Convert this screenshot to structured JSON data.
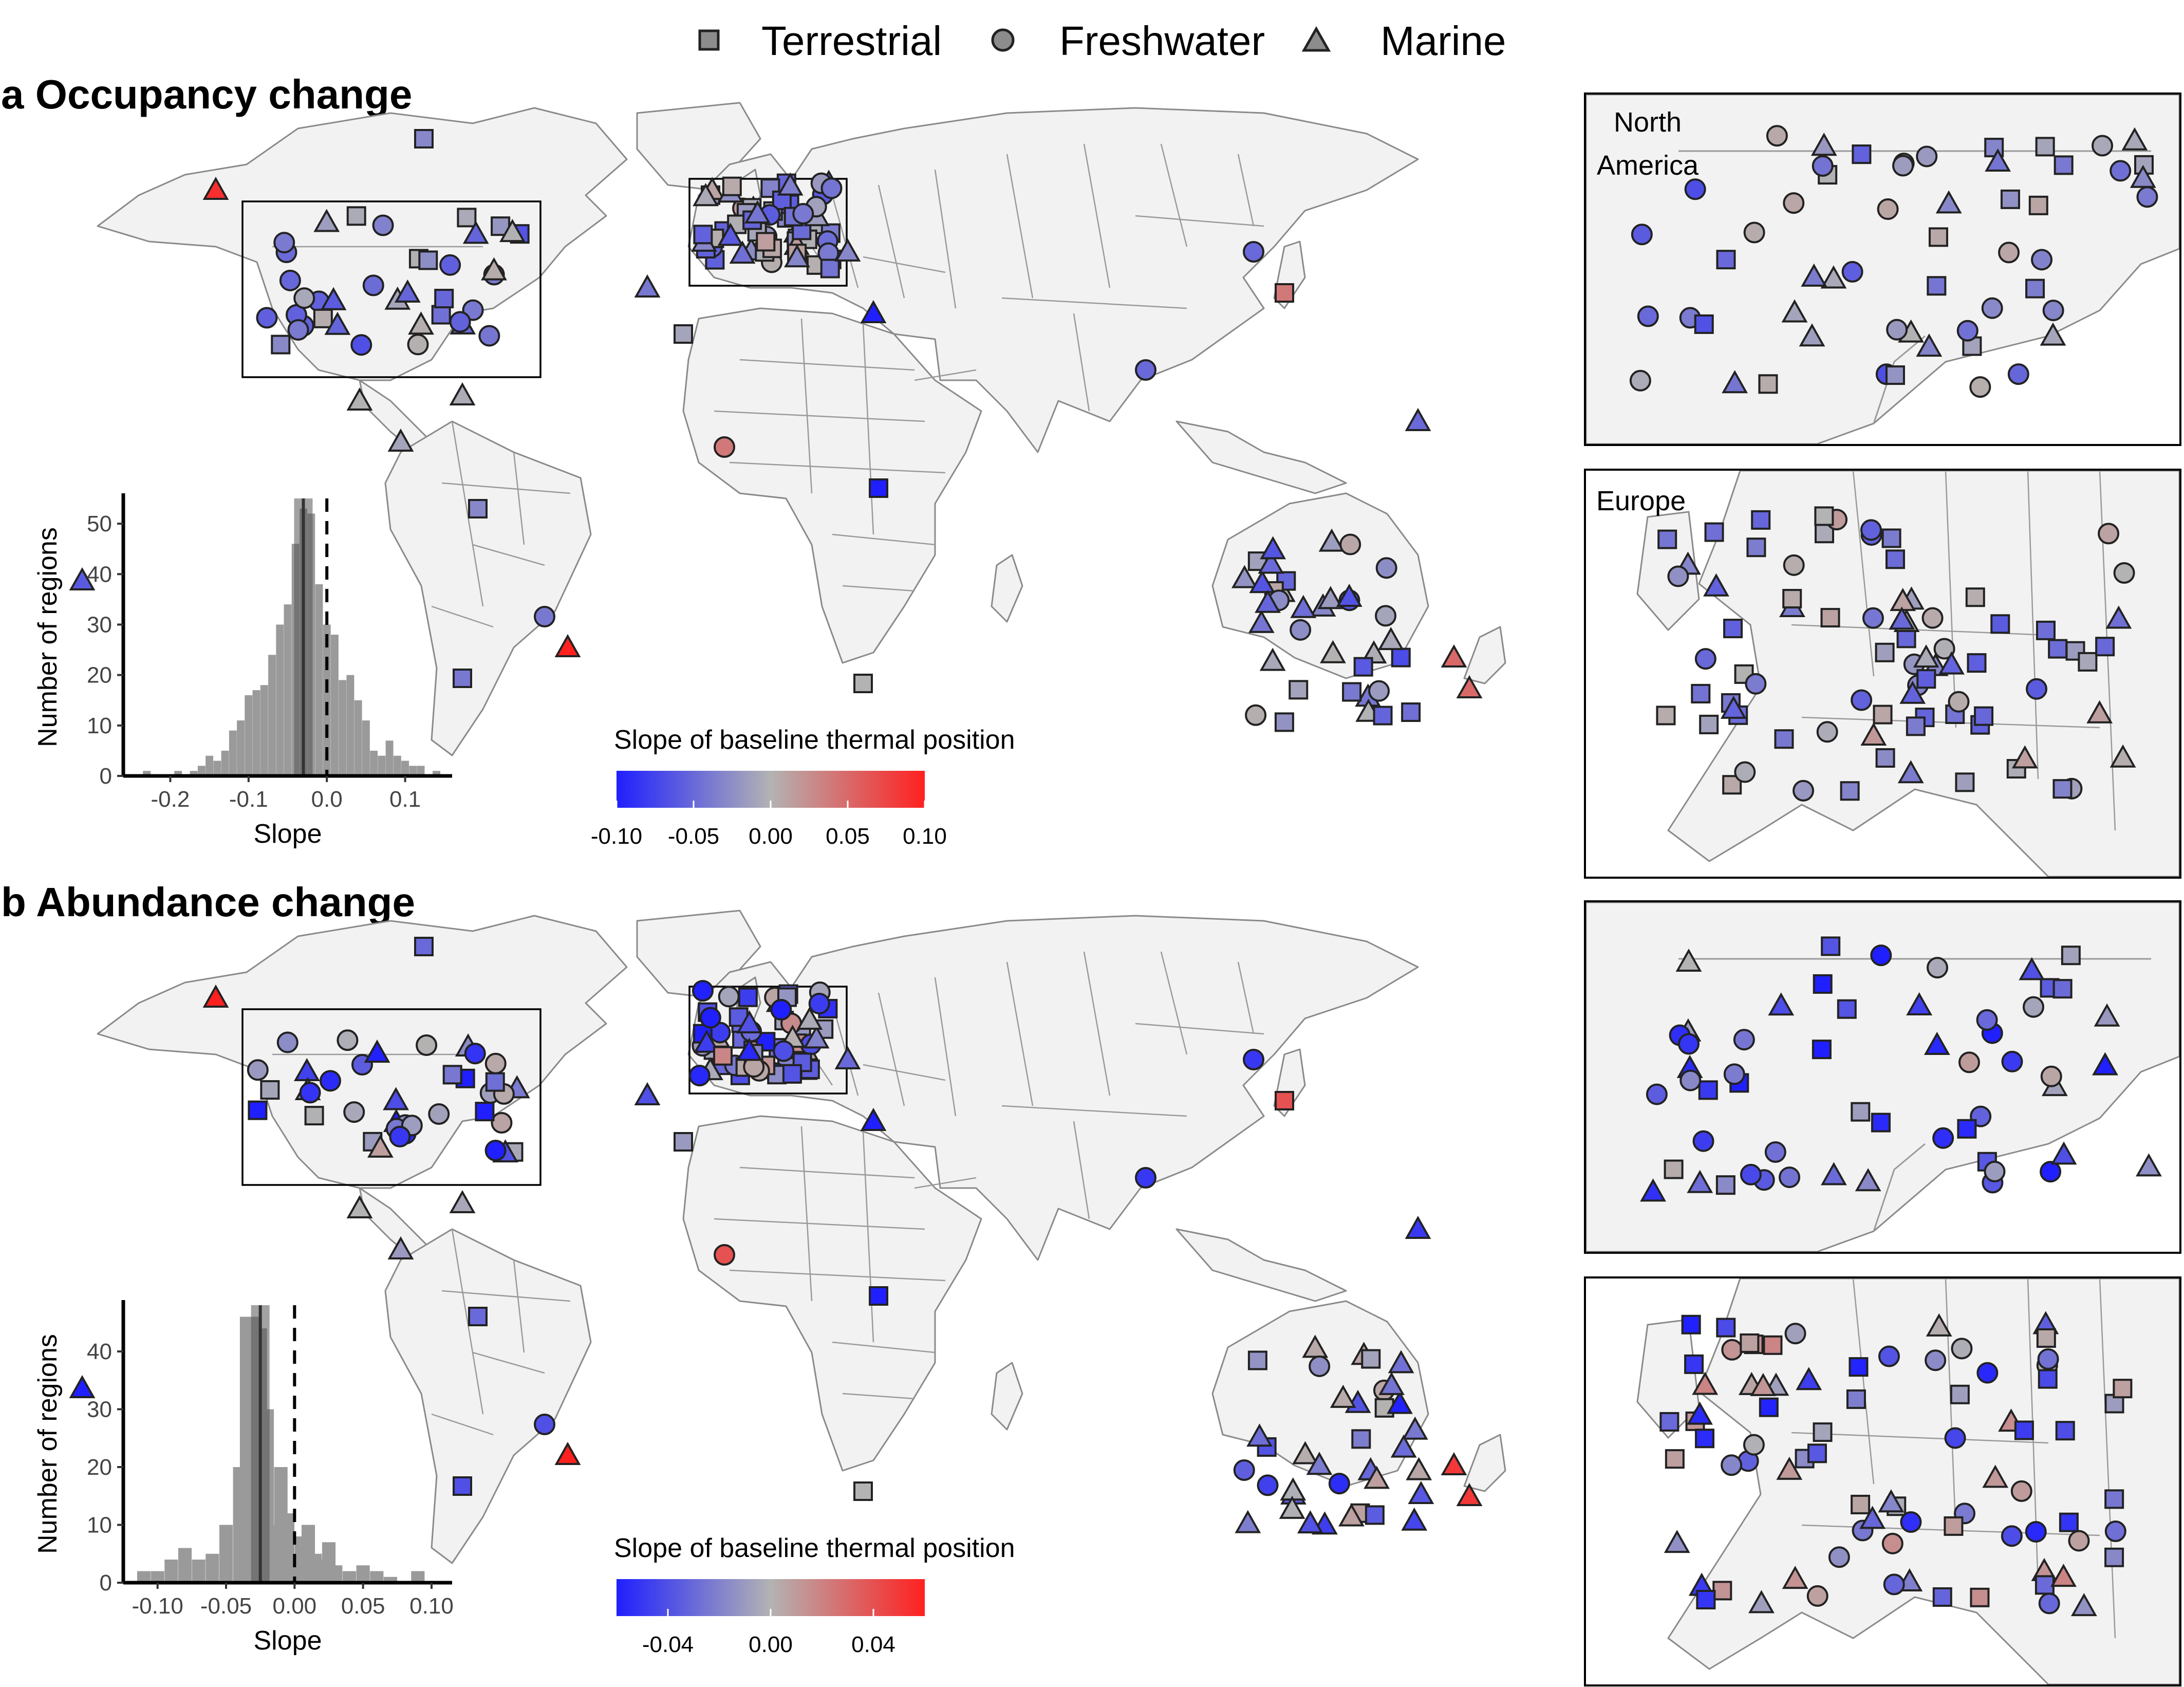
{
  "legend": {
    "items": [
      {
        "shape": "square",
        "label": "Terrestrial"
      },
      {
        "shape": "circle",
        "label": "Freshwater"
      },
      {
        "shape": "triangle",
        "label": "Marine"
      }
    ]
  },
  "panels": [
    {
      "id": "a",
      "title": "a Occupancy change",
      "colorbar": {
        "title": "Slope of baseline thermal position",
        "ticks": [
          "-0.10",
          "-0.05",
          "0.00",
          "0.05",
          "0.10"
        ],
        "range": [
          -0.1,
          0.1
        ],
        "colors": {
          "low": "#1f1fff",
          "mid": "#b3b3b3",
          "high": "#ff2020"
        }
      },
      "inset_labels": {
        "north_america": "North\nAmerica",
        "europe": "Europe"
      },
      "histogram": {
        "xlabel": "Slope",
        "ylabel": "Number of regions",
        "xticks": [
          "-0.2",
          "-0.1",
          "0.0",
          "0.1"
        ],
        "yticks": [
          "0",
          "10",
          "20",
          "30",
          "40",
          "50"
        ],
        "xlim": [
          -0.26,
          0.16
        ],
        "ylim": [
          0,
          55
        ],
        "mean_line": -0.03,
        "zero_line": 0,
        "bins": [
          {
            "x": -0.23,
            "count": 1
          },
          {
            "x": -0.19,
            "count": 1
          },
          {
            "x": -0.17,
            "count": 1
          },
          {
            "x": -0.16,
            "count": 2
          },
          {
            "x": -0.15,
            "count": 4
          },
          {
            "x": -0.14,
            "count": 3
          },
          {
            "x": -0.13,
            "count": 5
          },
          {
            "x": -0.12,
            "count": 9
          },
          {
            "x": -0.11,
            "count": 11
          },
          {
            "x": -0.1,
            "count": 16
          },
          {
            "x": -0.09,
            "count": 17
          },
          {
            "x": -0.08,
            "count": 18
          },
          {
            "x": -0.07,
            "count": 24
          },
          {
            "x": -0.06,
            "count": 30
          },
          {
            "x": -0.05,
            "count": 34
          },
          {
            "x": -0.04,
            "count": 46
          },
          {
            "x": -0.03,
            "count": 53
          },
          {
            "x": -0.02,
            "count": 52
          },
          {
            "x": -0.01,
            "count": 38
          },
          {
            "x": 0.0,
            "count": 30
          },
          {
            "x": 0.01,
            "count": 28
          },
          {
            "x": 0.02,
            "count": 19
          },
          {
            "x": 0.03,
            "count": 20
          },
          {
            "x": 0.04,
            "count": 15
          },
          {
            "x": 0.05,
            "count": 11
          },
          {
            "x": 0.06,
            "count": 5
          },
          {
            "x": 0.07,
            "count": 4
          },
          {
            "x": 0.08,
            "count": 7
          },
          {
            "x": 0.09,
            "count": 4
          },
          {
            "x": 0.1,
            "count": 3
          },
          {
            "x": 0.11,
            "count": 2
          },
          {
            "x": 0.12,
            "count": 2
          },
          {
            "x": 0.14,
            "count": 1
          }
        ]
      }
    },
    {
      "id": "b",
      "title": "b Abundance change",
      "colorbar": {
        "title": "Slope of baseline thermal position",
        "ticks": [
          "-0.04",
          "0.00",
          "0.04"
        ],
        "range": [
          -0.06,
          0.06
        ],
        "colors": {
          "low": "#1f1fff",
          "mid": "#b3b3b3",
          "high": "#ff2020"
        }
      },
      "inset_labels": {
        "north_america": "",
        "europe": ""
      },
      "histogram": {
        "xlabel": "Slope",
        "ylabel": "Number of regions",
        "xticks": [
          "-0.10",
          "-0.05",
          "0.00",
          "0.05",
          "0.10"
        ],
        "yticks": [
          "0",
          "10",
          "20",
          "30",
          "40"
        ],
        "xlim": [
          -0.125,
          0.115
        ],
        "ylim": [
          0,
          48
        ],
        "mean_line": -0.025,
        "zero_line": 0,
        "bins": [
          {
            "x": -0.11,
            "count": 2
          },
          {
            "x": -0.1,
            "count": 2
          },
          {
            "x": -0.09,
            "count": 4
          },
          {
            "x": -0.08,
            "count": 6
          },
          {
            "x": -0.07,
            "count": 4
          },
          {
            "x": -0.06,
            "count": 5
          },
          {
            "x": -0.05,
            "count": 10
          },
          {
            "x": -0.04,
            "count": 20
          },
          {
            "x": -0.035,
            "count": 46
          },
          {
            "x": -0.03,
            "count": 46
          },
          {
            "x": -0.025,
            "count": 44
          },
          {
            "x": -0.02,
            "count": 30
          },
          {
            "x": -0.015,
            "count": 10
          },
          {
            "x": -0.01,
            "count": 20
          },
          {
            "x": -0.005,
            "count": 12
          },
          {
            "x": 0.0,
            "count": 3
          },
          {
            "x": 0.005,
            "count": 8
          },
          {
            "x": 0.01,
            "count": 10
          },
          {
            "x": 0.015,
            "count": 5
          },
          {
            "x": 0.02,
            "count": 4
          },
          {
            "x": 0.025,
            "count": 7
          },
          {
            "x": 0.03,
            "count": 3
          },
          {
            "x": 0.04,
            "count": 2
          },
          {
            "x": 0.05,
            "count": 3
          },
          {
            "x": 0.06,
            "count": 2
          },
          {
            "x": 0.07,
            "count": 1
          },
          {
            "x": 0.09,
            "count": 2
          }
        ]
      }
    }
  ]
}
